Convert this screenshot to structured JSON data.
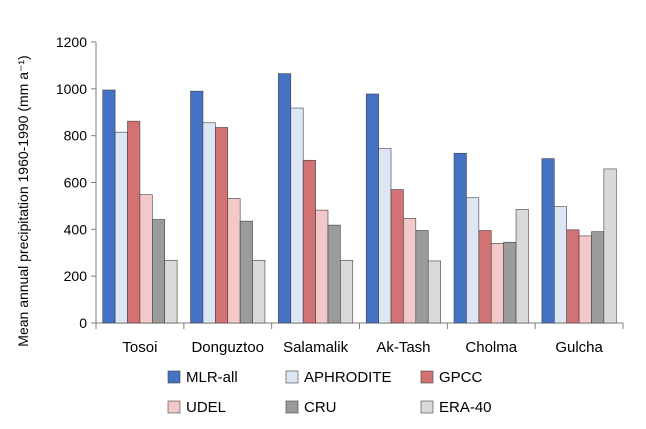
{
  "chart_data": {
    "type": "bar",
    "ylabel": "Mean annual precipitation 1960-1990 (mm a⁻¹)",
    "categories": [
      "Tosoi",
      "Donguztoo",
      "Salamalik",
      "Ak-Tash",
      "Cholma",
      "Gulcha"
    ],
    "ylim": [
      0,
      1200
    ],
    "yticks": [
      "0",
      "200",
      "400",
      "600",
      "800",
      "1000",
      "1200"
    ],
    "legend_position": "bottom",
    "series": [
      {
        "name": "MLR-all",
        "color": "#4472c4",
        "values": [
          995,
          990,
          1065,
          978,
          725,
          702
        ]
      },
      {
        "name": "APHRODITE",
        "color": "#dce6f4",
        "values": [
          815,
          855,
          918,
          745,
          535,
          497
        ]
      },
      {
        "name": "GPCC",
        "color": "#d27272",
        "values": [
          862,
          835,
          695,
          570,
          395,
          398
        ]
      },
      {
        "name": "UDEL",
        "color": "#f2c8c8",
        "values": [
          548,
          532,
          482,
          447,
          340,
          372
        ]
      },
      {
        "name": "CRU",
        "color": "#9b9b9b",
        "values": [
          442,
          435,
          418,
          395,
          345,
          390
        ]
      },
      {
        "name": "ERA-40",
        "color": "#d9d9d9",
        "values": [
          268,
          268,
          268,
          265,
          485,
          658
        ]
      }
    ]
  }
}
